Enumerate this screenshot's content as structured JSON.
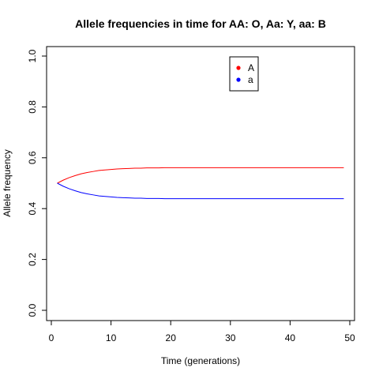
{
  "chart_data": {
    "type": "line",
    "title": "Allele frequencies in time for  AA: O, Aa: Y, aa: B",
    "xlabel": "Time (generations)",
    "ylabel": "Allele frequency",
    "xlim": [
      0,
      50
    ],
    "ylim": [
      0,
      1
    ],
    "xticks": [
      0,
      10,
      20,
      30,
      40,
      50
    ],
    "yticks": [
      0.0,
      0.2,
      0.4,
      0.6,
      0.8,
      1.0
    ],
    "ytick_labels": [
      "0.0",
      "0.2",
      "0.4",
      "0.6",
      "0.8",
      "1.0"
    ],
    "legend_position": "top-right",
    "series": [
      {
        "name": "A",
        "color": "#ff0000",
        "x": [
          1,
          2,
          3,
          4,
          5,
          6,
          7,
          8,
          9,
          10,
          11,
          12,
          13,
          14,
          15,
          16,
          17,
          18,
          19,
          20,
          22,
          25,
          30,
          35,
          40,
          45,
          49
        ],
        "values": [
          0.5,
          0.512,
          0.522,
          0.53,
          0.537,
          0.542,
          0.546,
          0.55,
          0.552,
          0.554,
          0.556,
          0.557,
          0.558,
          0.559,
          0.559,
          0.56,
          0.56,
          0.56,
          0.561,
          0.561,
          0.561,
          0.561,
          0.561,
          0.561,
          0.561,
          0.561,
          0.561
        ]
      },
      {
        "name": "a",
        "color": "#0000ff",
        "x": [
          1,
          2,
          3,
          4,
          5,
          6,
          7,
          8,
          9,
          10,
          11,
          12,
          13,
          14,
          15,
          16,
          17,
          18,
          19,
          20,
          22,
          25,
          30,
          35,
          40,
          45,
          49
        ],
        "values": [
          0.5,
          0.488,
          0.478,
          0.47,
          0.463,
          0.458,
          0.454,
          0.45,
          0.448,
          0.446,
          0.444,
          0.443,
          0.442,
          0.441,
          0.441,
          0.44,
          0.44,
          0.44,
          0.439,
          0.439,
          0.439,
          0.439,
          0.439,
          0.439,
          0.439,
          0.439,
          0.439
        ]
      }
    ]
  }
}
